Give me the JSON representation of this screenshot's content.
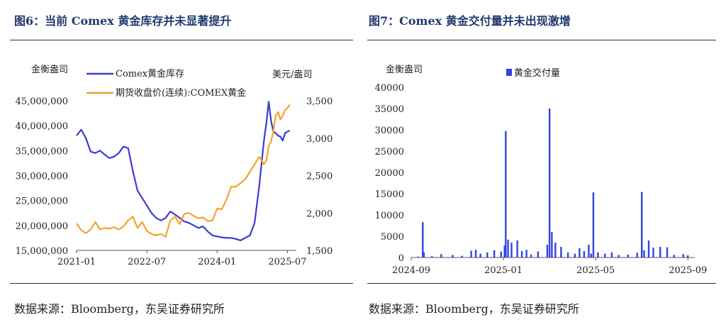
{
  "source_text": "数据来源：Bloomberg，东吴证券研究所",
  "colors": {
    "blue": "#3b3bd6",
    "orange": "#f5a22e",
    "title": "#1f3a6e",
    "bar": "#2f45e0"
  },
  "chart_data": [
    {
      "type": "line",
      "title": "图6：当前 Comex 黄金库存并未显著提升",
      "left_axis_label": "金衡盎司",
      "right_axis_label": "美元/盎司",
      "left_ticks": [
        "45,000,000",
        "40,000,000",
        "35,000,000",
        "30,000,000",
        "25,000,000",
        "20,000,000",
        "15,000,000"
      ],
      "left_tick_values": [
        45000000,
        40000000,
        35000000,
        30000000,
        25000000,
        20000000,
        15000000
      ],
      "right_ticks": [
        "3,500",
        "3,000",
        "2,500",
        "2,000",
        "1,500"
      ],
      "right_tick_values": [
        3500,
        3000,
        2500,
        2000,
        1500
      ],
      "x_ticks": [
        "2021-01",
        "2022-07",
        "2024-01",
        "2025-07"
      ],
      "x_tick_values": [
        2021.0,
        2022.5,
        2024.0,
        2025.5
      ],
      "xlim": [
        2021.0,
        2025.6
      ],
      "ylim_left": [
        15000000,
        45000000
      ],
      "ylim_right": [
        1500,
        3500
      ],
      "series": [
        {
          "name": "Comex黄金库存",
          "axis": "left",
          "x": [
            2021.0,
            2021.1,
            2021.2,
            2021.3,
            2021.4,
            2021.5,
            2021.6,
            2021.7,
            2021.8,
            2021.9,
            2022.0,
            2022.1,
            2022.2,
            2022.3,
            2022.4,
            2022.5,
            2022.6,
            2022.7,
            2022.8,
            2022.9,
            2023.0,
            2023.1,
            2023.2,
            2023.3,
            2023.4,
            2023.5,
            2023.6,
            2023.7,
            2023.8,
            2023.9,
            2024.0,
            2024.1,
            2024.2,
            2024.3,
            2024.4,
            2024.5,
            2024.6,
            2024.7,
            2024.8,
            2024.9,
            2025.0,
            2025.05,
            2025.1,
            2025.15,
            2025.2,
            2025.25,
            2025.3,
            2025.35,
            2025.4,
            2025.45,
            2025.5,
            2025.55
          ],
          "values": [
            38000000,
            39200000,
            37500000,
            34800000,
            34500000,
            35000000,
            34200000,
            33500000,
            33800000,
            34500000,
            35800000,
            35500000,
            31000000,
            27000000,
            25500000,
            24000000,
            22500000,
            21500000,
            21000000,
            21500000,
            22800000,
            22200000,
            21500000,
            20800000,
            20500000,
            20000000,
            19500000,
            19800000,
            18800000,
            18000000,
            17800000,
            17600000,
            17500000,
            17500000,
            17300000,
            17000000,
            17500000,
            18000000,
            20500000,
            28000000,
            37000000,
            40500000,
            44800000,
            41000000,
            38800000,
            38500000,
            38000000,
            37800000,
            37000000,
            38500000,
            38800000,
            39000000
          ]
        },
        {
          "name": "期货收盘价(连续):COMEX黄金",
          "axis": "right",
          "x": [
            2021.0,
            2021.1,
            2021.2,
            2021.3,
            2021.4,
            2021.5,
            2021.6,
            2021.7,
            2021.8,
            2021.9,
            2022.0,
            2022.1,
            2022.2,
            2022.3,
            2022.4,
            2022.5,
            2022.6,
            2022.7,
            2022.8,
            2022.9,
            2023.0,
            2023.1,
            2023.2,
            2023.3,
            2023.4,
            2023.5,
            2023.6,
            2023.7,
            2023.8,
            2023.9,
            2024.0,
            2024.1,
            2024.2,
            2024.3,
            2024.4,
            2024.5,
            2024.6,
            2024.7,
            2024.8,
            2024.9,
            2025.0,
            2025.05,
            2025.1,
            2025.15,
            2025.2,
            2025.25,
            2025.3,
            2025.35,
            2025.4,
            2025.45,
            2025.5,
            2025.55
          ],
          "values": [
            1860,
            1770,
            1730,
            1780,
            1880,
            1780,
            1800,
            1790,
            1810,
            1780,
            1820,
            1900,
            1950,
            1800,
            1880,
            1760,
            1720,
            1700,
            1720,
            1680,
            1900,
            1950,
            1850,
            1990,
            2000,
            1960,
            1930,
            1940,
            1890,
            1900,
            2060,
            2050,
            2180,
            2350,
            2350,
            2400,
            2450,
            2550,
            2650,
            2750,
            2650,
            2700,
            2900,
            2950,
            3100,
            3300,
            3350,
            3250,
            3300,
            3380,
            3400,
            3450
          ]
        }
      ]
    },
    {
      "type": "bar",
      "title": "图7：Comex 黄金交付量并未出现激增",
      "ylabel": "金衡盎司",
      "legend": "黄金交付量",
      "y_ticks": [
        "40000",
        "35000",
        "30000",
        "25000",
        "20000",
        "15000",
        "10000",
        "5000",
        "0"
      ],
      "y_tick_values": [
        40000,
        35000,
        30000,
        25000,
        20000,
        15000,
        10000,
        5000,
        0
      ],
      "ylim": [
        0,
        40000
      ],
      "x_ticks": [
        "2024-09",
        "2025-01",
        "2025-05",
        "2025-09"
      ],
      "x_tick_values": [
        0,
        4,
        8,
        12
      ],
      "xlim": [
        0,
        12.3
      ],
      "x": [
        0.3,
        0.5,
        0.55,
        0.9,
        1.3,
        1.8,
        2.2,
        2.6,
        2.8,
        3.0,
        3.3,
        3.6,
        3.9,
        4.05,
        4.1,
        4.2,
        4.35,
        4.6,
        4.8,
        5.0,
        5.2,
        5.5,
        5.9,
        6.0,
        6.1,
        6.25,
        6.5,
        6.8,
        7.1,
        7.3,
        7.5,
        7.7,
        7.8,
        7.9,
        8.1,
        8.4,
        8.7,
        9.0,
        9.4,
        9.8,
        10.0,
        10.1,
        10.3,
        10.5,
        10.8,
        11.1,
        11.4,
        11.8,
        12.0
      ],
      "values": [
        200,
        8300,
        1200,
        300,
        800,
        600,
        400,
        1600,
        1800,
        900,
        1200,
        1700,
        1400,
        2800,
        29700,
        4200,
        3500,
        4000,
        1500,
        1800,
        700,
        1400,
        3000,
        35000,
        6000,
        3500,
        2500,
        1200,
        900,
        2200,
        1500,
        3000,
        900,
        15300,
        1200,
        900,
        1200,
        600,
        700,
        1100,
        15400,
        1700,
        4000,
        2300,
        2500,
        2400,
        600,
        800,
        500
      ]
    }
  ]
}
